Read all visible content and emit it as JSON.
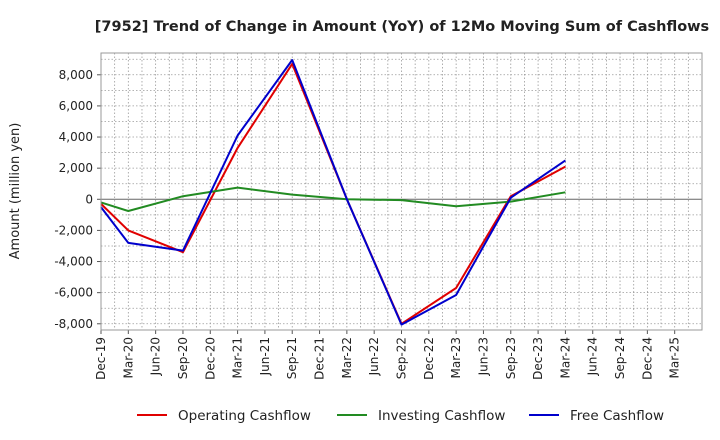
{
  "chart_data": {
    "type": "line",
    "title": "[7952]  Trend of Change in Amount (YoY) of 12Mo Moving Sum of Cashflows",
    "xlabel": "",
    "ylabel": "Amount (million yen)",
    "ylim": [
      -8400,
      9400
    ],
    "yticks": [
      -8000,
      -6000,
      -4000,
      -2000,
      0,
      2000,
      4000,
      6000,
      8000
    ],
    "ytick_labels": [
      "-8,000",
      "-6,000",
      "-4,000",
      "-2,000",
      "0",
      "2,000",
      "4,000",
      "6,000",
      "8,000"
    ],
    "categories": [
      "Dec-19",
      "Mar-20",
      "Jun-20",
      "Sep-20",
      "Dec-20",
      "Mar-21",
      "Jun-21",
      "Sep-21",
      "Dec-21",
      "Mar-22",
      "Jun-22",
      "Sep-22",
      "Dec-22",
      "Mar-23",
      "Jun-23",
      "Sep-23",
      "Dec-23",
      "Mar-24",
      "Jun-24",
      "Sep-24",
      "Dec-24",
      "Mar-25"
    ],
    "grid": true,
    "legend_position": "bottom",
    "series": [
      {
        "name": "Operating Cashflow",
        "color": "#e00000",
        "values": [
          -300,
          -2000,
          null,
          -3400,
          null,
          3300,
          null,
          8700,
          null,
          0,
          null,
          -8000,
          null,
          -5700,
          null,
          200,
          null,
          2100,
          null,
          null,
          null,
          null
        ]
      },
      {
        "name": "Investing Cashflow",
        "color": "#228b22",
        "values": [
          -200,
          -750,
          null,
          200,
          null,
          750,
          null,
          300,
          null,
          0,
          null,
          -50,
          null,
          -450,
          null,
          -150,
          null,
          450,
          null,
          null,
          null,
          null
        ]
      },
      {
        "name": "Free Cashflow",
        "color": "#0000cc",
        "values": [
          -500,
          -2800,
          null,
          -3300,
          null,
          4100,
          null,
          8950,
          null,
          0,
          null,
          -8050,
          null,
          -6150,
          null,
          100,
          null,
          2500,
          null,
          null,
          null,
          null
        ]
      }
    ]
  }
}
